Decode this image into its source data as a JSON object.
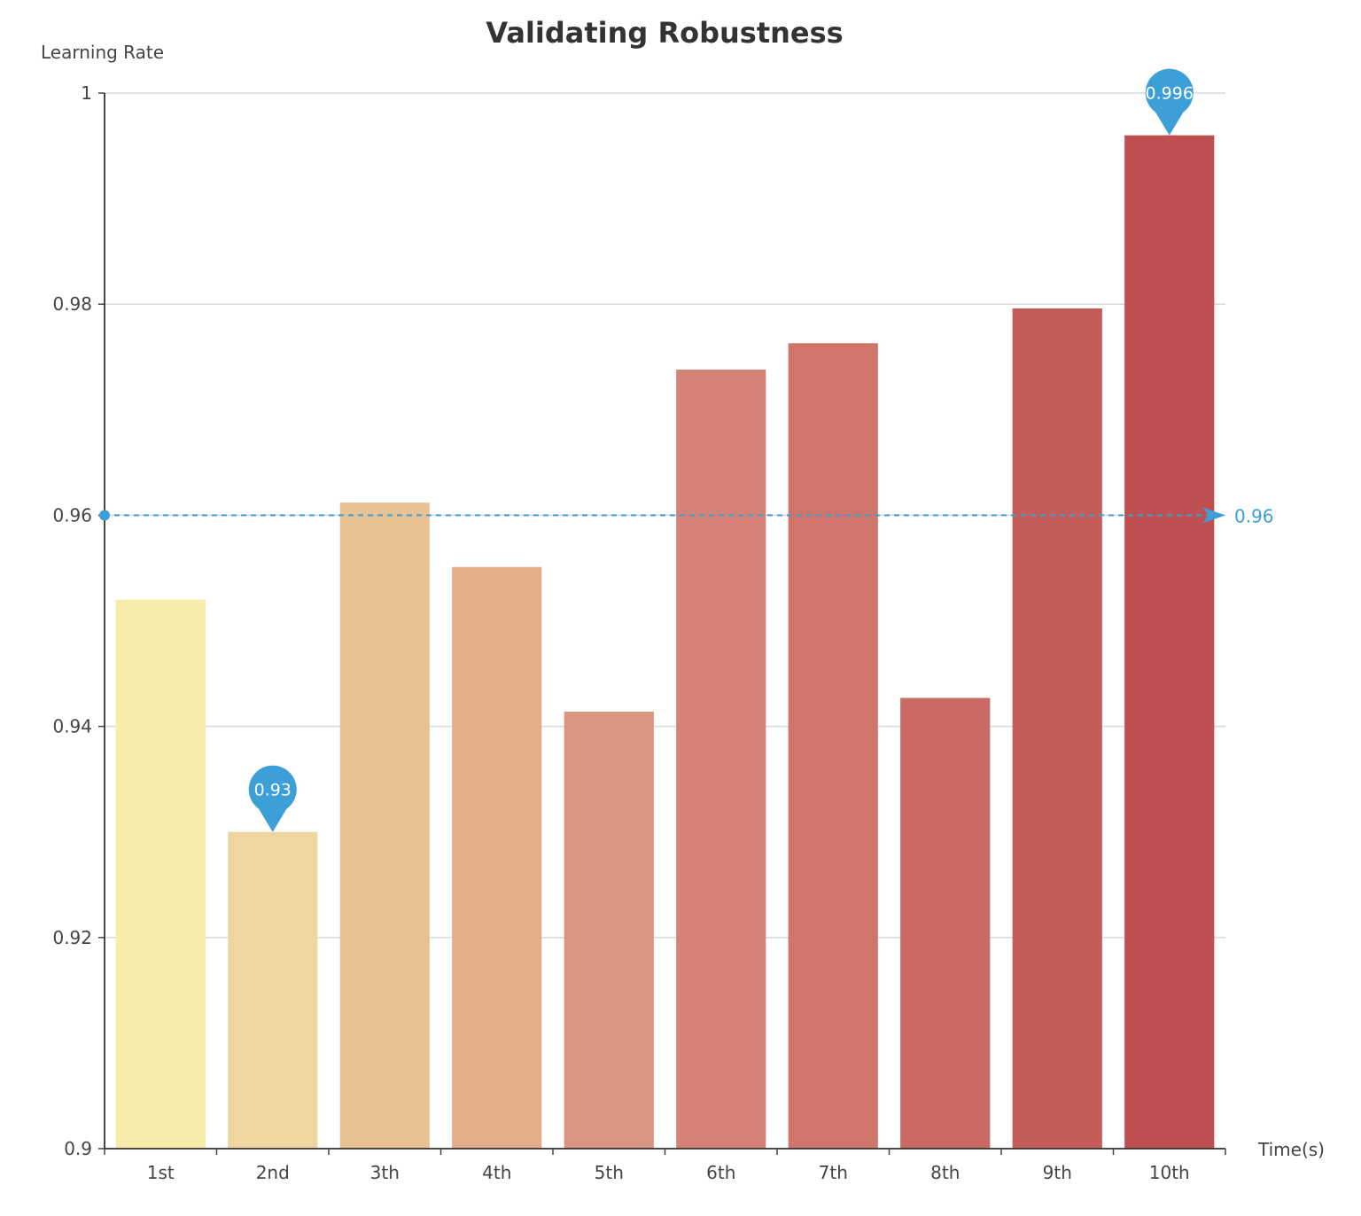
{
  "chart_data": {
    "type": "bar",
    "title": "Validating Robustness",
    "ylabel": "Learning Rate",
    "xlabel": "Time(s)",
    "categories": [
      "1st",
      "2nd",
      "3th",
      "4th",
      "5th",
      "6th",
      "7th",
      "8th",
      "9th",
      "10th"
    ],
    "values": [
      0.952,
      0.93,
      0.9612,
      0.9551,
      0.9414,
      0.9738,
      0.9763,
      0.9427,
      0.9796,
      0.996
    ],
    "colors": [
      "#f7eca9",
      "#efd59f",
      "#e9c293",
      "#e2ad88",
      "#da9580",
      "#d48275",
      "#cf756c",
      "#c96a64",
      "#c45c5a",
      "#bf5052"
    ],
    "ylim": [
      0.9,
      1.0
    ],
    "yticks": [
      "0.9",
      "0.92",
      "0.94",
      "0.96",
      "0.98",
      "1"
    ],
    "ytick_values": [
      0.9,
      0.92,
      0.94,
      0.96,
      0.98,
      1.0
    ],
    "grid": true,
    "mark_points": [
      {
        "category": "2nd",
        "value": 0.93,
        "label": "0.93"
      },
      {
        "category": "10th",
        "value": 0.996,
        "label": "0.996"
      }
    ],
    "mark_line": {
      "value": 0.96,
      "label": "0.96",
      "style": "dashed"
    },
    "accent_color": "#3d9fd8"
  }
}
